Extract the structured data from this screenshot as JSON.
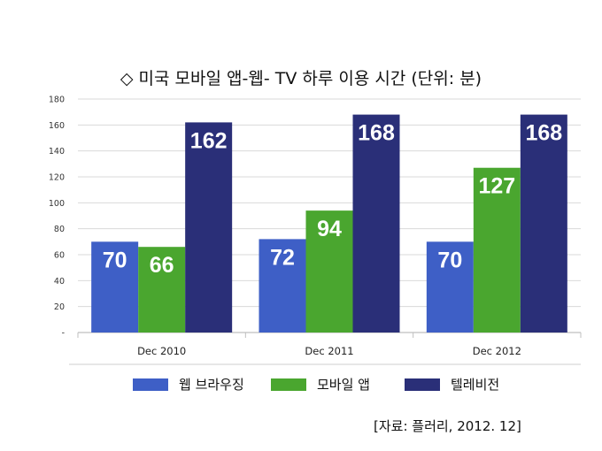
{
  "title": "◇ 미국 모바일 앱-웹- TV 하루 이용 시간 (단위: 분)",
  "source": "[자료: 플러리, 2012. 12]",
  "colors": {
    "web": "#3e5fc6",
    "app": "#4aa62f",
    "tv": "#2a2f78"
  },
  "chart_data": {
    "type": "bar",
    "title": "◇ 미국 모바일 앱-웹- TV 하루 이용 시간 (단위: 분)",
    "xlabel": "",
    "ylabel": "",
    "categories": [
      "Dec 2010",
      "Dec 2011",
      "Dec 2012"
    ],
    "series": [
      {
        "name": "웹 브라우징",
        "values": [
          70,
          72,
          70
        ]
      },
      {
        "name": "모바일 앱",
        "values": [
          66,
          94,
          127
        ]
      },
      {
        "name": "텔레비전",
        "values": [
          162,
          168,
          168
        ]
      }
    ],
    "ylim": [
      0,
      180
    ],
    "yticks": [
      0,
      20,
      40,
      60,
      80,
      100,
      120,
      140,
      160,
      180
    ],
    "ytick_labels": [
      "-",
      "20",
      "40",
      "60",
      "80",
      "100",
      "120",
      "140",
      "160",
      "180"
    ],
    "grid": true,
    "legend_position": "bottom"
  }
}
